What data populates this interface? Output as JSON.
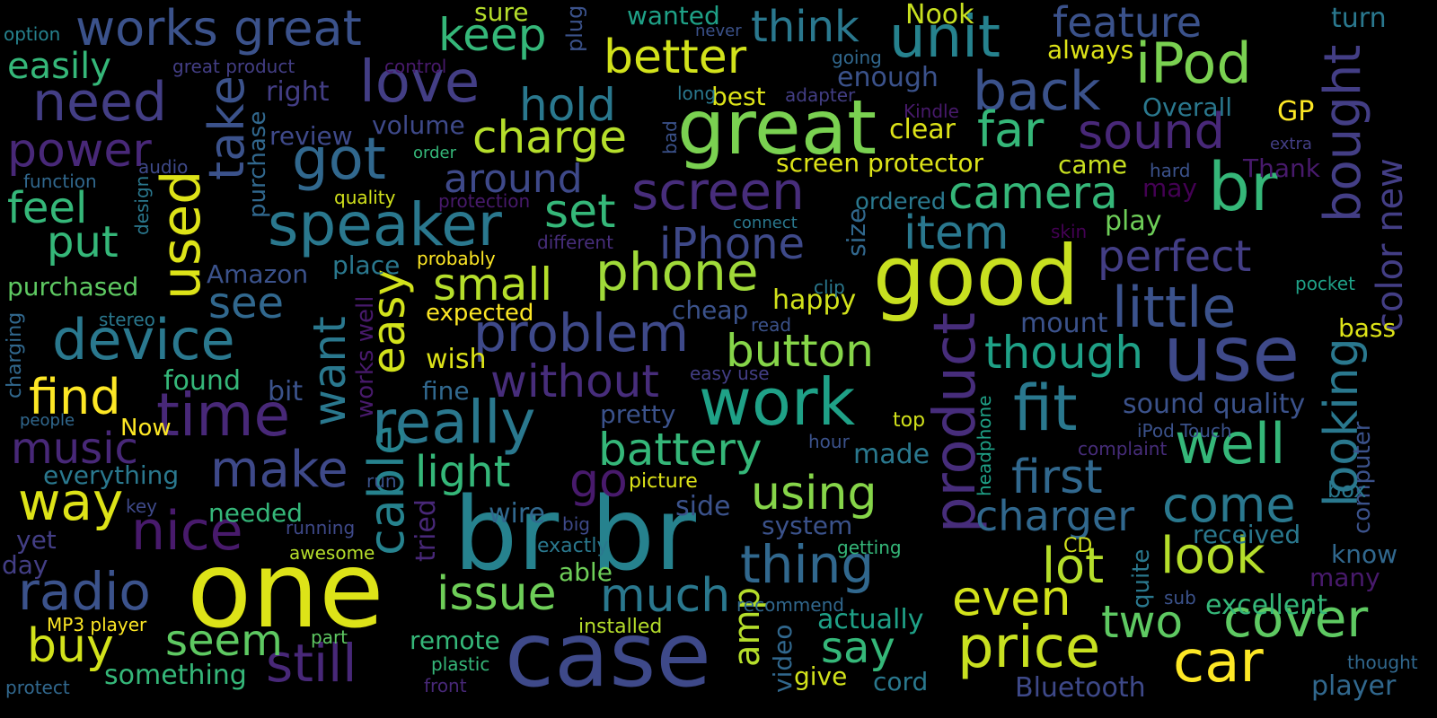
{
  "background": "#000000",
  "palette": [
    "#440154",
    "#482878",
    "#3e4989",
    "#31688e",
    "#26828e",
    "#1f9e89",
    "#35b779",
    "#6ece58",
    "#b5de2b",
    "#fde725"
  ],
  "words": [
    {
      "text": "br br",
      "color": "#26828e"
    },
    {
      "text": "case",
      "color": "#3e4989"
    },
    {
      "text": "one",
      "color": "#dde318"
    },
    {
      "text": "good",
      "color": "#c8e020"
    },
    {
      "text": "great",
      "color": "#7ad151"
    },
    {
      "text": "use",
      "color": "#3e4989"
    },
    {
      "text": "work",
      "color": "#1fa187"
    },
    {
      "text": "product",
      "color": "#472d7b"
    },
    {
      "text": "speaker",
      "color": "#2a788e"
    },
    {
      "text": "really",
      "color": "#2a788e"
    },
    {
      "text": "time",
      "color": "#482878"
    },
    {
      "text": "br",
      "color": "#35b779"
    },
    {
      "text": "device",
      "color": "#2a788e"
    },
    {
      "text": "unit",
      "color": "#26828e"
    },
    {
      "text": "price",
      "color": "#c8e020"
    },
    {
      "text": "car",
      "color": "#fde725"
    },
    {
      "text": "little",
      "color": "#3b528b"
    },
    {
      "text": "still",
      "color": "#482878"
    },
    {
      "text": "nice",
      "color": "#481a6c"
    },
    {
      "text": "love",
      "color": "#433e85"
    },
    {
      "text": "phone",
      "color": "#a0da39"
    },
    {
      "text": "problem",
      "color": "#3e4989"
    },
    {
      "text": "thing",
      "color": "#31688e"
    },
    {
      "text": "iPod",
      "color": "#7ad151"
    },
    {
      "text": "cover",
      "color": "#5ec962"
    },
    {
      "text": "well",
      "color": "#35b779"
    },
    {
      "text": "fit",
      "color": "#2a788e"
    },
    {
      "text": "look",
      "color": "#b5de2b"
    },
    {
      "text": "even",
      "color": "#d2e21b"
    },
    {
      "text": "radio",
      "color": "#3b528b"
    },
    {
      "text": "used",
      "color": "#dde318"
    },
    {
      "text": "need",
      "color": "#433e85"
    },
    {
      "text": "got",
      "color": "#31688e"
    },
    {
      "text": "screen",
      "color": "#472d7b"
    },
    {
      "text": "sound",
      "color": "#482878"
    },
    {
      "text": "bought",
      "color": "#433e85"
    },
    {
      "text": "cable",
      "color": "#26828e"
    },
    {
      "text": "easy",
      "color": "#d2e21b"
    },
    {
      "text": "make",
      "color": "#3e4989"
    },
    {
      "text": "much",
      "color": "#2a788e"
    },
    {
      "text": "issue",
      "color": "#6ece58"
    },
    {
      "text": "using",
      "color": "#86d549"
    },
    {
      "text": "battery",
      "color": "#35b779"
    },
    {
      "text": "small",
      "color": "#b5de2b"
    },
    {
      "text": "charge",
      "color": "#b5de2b"
    },
    {
      "text": "better",
      "color": "#d2e21b"
    },
    {
      "text": "works great",
      "color": "#3b528b"
    },
    {
      "text": "back",
      "color": "#3b528b"
    },
    {
      "text": "far",
      "color": "#35b779"
    },
    {
      "text": "camera",
      "color": "#35b779"
    },
    {
      "text": "iPhone",
      "color": "#3e4989"
    },
    {
      "text": "item",
      "color": "#2a788e"
    },
    {
      "text": "perfect",
      "color": "#433e85"
    },
    {
      "text": "though",
      "color": "#1fa187"
    },
    {
      "text": "first",
      "color": "#31688e"
    },
    {
      "text": "charger",
      "color": "#31688e"
    },
    {
      "text": "come",
      "color": "#2a788e"
    },
    {
      "text": "lot",
      "color": "#b5de2b"
    },
    {
      "text": "two",
      "color": "#5ec962"
    },
    {
      "text": "say",
      "color": "#35b779"
    },
    {
      "text": "button",
      "color": "#86d549"
    },
    {
      "text": "without",
      "color": "#472d7b"
    },
    {
      "text": "around",
      "color": "#3e4989"
    },
    {
      "text": "hold",
      "color": "#2a788e"
    },
    {
      "text": "set",
      "color": "#35b779"
    },
    {
      "text": "keep",
      "color": "#35b779"
    },
    {
      "text": "think",
      "color": "#2a788e"
    },
    {
      "text": "feature",
      "color": "#3b528b"
    },
    {
      "text": "way",
      "color": "#dde318"
    },
    {
      "text": "buy",
      "color": "#d2e21b"
    },
    {
      "text": "seem",
      "color": "#5ec962"
    },
    {
      "text": "find",
      "color": "#fde725"
    },
    {
      "text": "music",
      "color": "#482878"
    },
    {
      "text": "power",
      "color": "#482878"
    },
    {
      "text": "take",
      "color": "#3b528b"
    },
    {
      "text": "want",
      "color": "#2a788e"
    },
    {
      "text": "see",
      "color": "#31688e"
    },
    {
      "text": "put",
      "color": "#35b779"
    },
    {
      "text": "feel",
      "color": "#35b779"
    },
    {
      "text": "easily",
      "color": "#35b779"
    },
    {
      "text": "light",
      "color": "#35b779"
    },
    {
      "text": "go",
      "color": "#481a6c"
    },
    {
      "text": "looking",
      "color": "#2a788e"
    },
    {
      "text": "amp",
      "color": "#b5de2b"
    },
    {
      "text": "sound quality",
      "color": "#3b528b"
    },
    {
      "text": "color new",
      "color": "#433e85"
    },
    {
      "text": "screen protector",
      "color": "#dde318"
    },
    {
      "text": "came",
      "color": "#c8e020"
    },
    {
      "text": "clear",
      "color": "#dde318"
    },
    {
      "text": "happy",
      "color": "#d2e21b"
    },
    {
      "text": "pretty",
      "color": "#3b528b"
    },
    {
      "text": "everything",
      "color": "#2a788e"
    },
    {
      "text": "something",
      "color": "#35b779"
    },
    {
      "text": "remote",
      "color": "#35b779"
    },
    {
      "text": "actually",
      "color": "#1fa187"
    },
    {
      "text": "excellent",
      "color": "#35b779"
    },
    {
      "text": "received",
      "color": "#2a788e"
    },
    {
      "text": "know",
      "color": "#31688e"
    },
    {
      "text": "system",
      "color": "#3b528b"
    },
    {
      "text": "Bluetooth",
      "color": "#3e4989"
    },
    {
      "text": "player",
      "color": "#31688e"
    },
    {
      "text": "Nook",
      "color": "#c8e020"
    },
    {
      "text": "wanted",
      "color": "#1fa187"
    },
    {
      "text": "enough",
      "color": "#3b528b"
    },
    {
      "text": "always",
      "color": "#dde318"
    },
    {
      "text": "turn",
      "color": "#2a788e"
    },
    {
      "text": "GP",
      "color": "#fde725"
    },
    {
      "text": "Overall",
      "color": "#2a788e"
    },
    {
      "text": "Thank",
      "color": "#481a6c"
    },
    {
      "text": "may",
      "color": "#440154"
    },
    {
      "text": "play",
      "color": "#6ece58"
    },
    {
      "text": "mount",
      "color": "#3b528b"
    },
    {
      "text": "bass",
      "color": "#dde318"
    },
    {
      "text": "cheap",
      "color": "#3b528b"
    },
    {
      "text": "expected",
      "color": "#fde725"
    },
    {
      "text": "purchased",
      "color": "#5ec962"
    },
    {
      "text": "Amazon",
      "color": "#3b528b"
    },
    {
      "text": "place",
      "color": "#2a788e"
    },
    {
      "text": "found",
      "color": "#35b779"
    },
    {
      "text": "wish",
      "color": "#dde318"
    },
    {
      "text": "fine",
      "color": "#31688e"
    },
    {
      "text": "bit",
      "color": "#3b528b"
    },
    {
      "text": "review",
      "color": "#3e4989"
    },
    {
      "text": "volume",
      "color": "#3e4989"
    },
    {
      "text": "right",
      "color": "#433e85"
    },
    {
      "text": "best",
      "color": "#dde318"
    },
    {
      "text": "sure",
      "color": "#b5de2b"
    },
    {
      "text": "wire",
      "color": "#31688e"
    },
    {
      "text": "side",
      "color": "#3b528b"
    },
    {
      "text": "able",
      "color": "#6ece58"
    },
    {
      "text": "made",
      "color": "#2a788e"
    },
    {
      "text": "give",
      "color": "#d2e21b"
    },
    {
      "text": "cord",
      "color": "#2a788e"
    },
    {
      "text": "needed",
      "color": "#35b779"
    },
    {
      "text": "yet",
      "color": "#433e85"
    },
    {
      "text": "day",
      "color": "#433e85"
    },
    {
      "text": "tried",
      "color": "#482878"
    },
    {
      "text": "size",
      "color": "#31688e"
    },
    {
      "text": "video",
      "color": "#31688e"
    },
    {
      "text": "quite",
      "color": "#2a788e"
    },
    {
      "text": "Now",
      "color": "#fde725"
    },
    {
      "text": "works well",
      "color": "#481a6c"
    },
    {
      "text": "purchase",
      "color": "#31688e"
    },
    {
      "text": "design",
      "color": "#2a788e"
    },
    {
      "text": "charging",
      "color": "#31688e"
    },
    {
      "text": "headphone",
      "color": "#1fa187"
    },
    {
      "text": "computer",
      "color": "#3b528b"
    },
    {
      "text": "plug",
      "color": "#3b528b"
    },
    {
      "text": "bad",
      "color": "#3b528b"
    },
    {
      "text": "great product",
      "color": "#433e85"
    },
    {
      "text": "control",
      "color": "#481a6c"
    },
    {
      "text": "option",
      "color": "#26828e"
    },
    {
      "text": "never",
      "color": "#3b528b"
    },
    {
      "text": "going",
      "color": "#31688e"
    },
    {
      "text": "Kindle",
      "color": "#481a6c"
    },
    {
      "text": "long",
      "color": "#2a788e"
    },
    {
      "text": "adapter",
      "color": "#433e85"
    },
    {
      "text": "extra",
      "color": "#433e85"
    },
    {
      "text": "hard",
      "color": "#3b528b"
    },
    {
      "text": "audio",
      "color": "#3e4989"
    },
    {
      "text": "function",
      "color": "#31688e"
    },
    {
      "text": "order",
      "color": "#35b779"
    },
    {
      "text": "quality",
      "color": "#d2e21b"
    },
    {
      "text": "protection",
      "color": "#481a6c"
    },
    {
      "text": "connect",
      "color": "#2a788e"
    },
    {
      "text": "different",
      "color": "#472d7b"
    },
    {
      "text": "skin",
      "color": "#440154"
    },
    {
      "text": "ordered",
      "color": "#2a788e"
    },
    {
      "text": "probably",
      "color": "#fde725"
    },
    {
      "text": "clip",
      "color": "#2a788e"
    },
    {
      "text": "pocket",
      "color": "#1fa187"
    },
    {
      "text": "read",
      "color": "#3b528b"
    },
    {
      "text": "stereo",
      "color": "#2a788e"
    },
    {
      "text": "easy use",
      "color": "#433e85"
    },
    {
      "text": "top",
      "color": "#d2e21b"
    },
    {
      "text": "iPod Touch",
      "color": "#3b528b"
    },
    {
      "text": "complaint",
      "color": "#472d7b"
    },
    {
      "text": "hour",
      "color": "#3b528b"
    },
    {
      "text": "people",
      "color": "#31688e"
    },
    {
      "text": "run",
      "color": "#3b528b"
    },
    {
      "text": "picture",
      "color": "#dde318"
    },
    {
      "text": "key",
      "color": "#3e4989"
    },
    {
      "text": "running",
      "color": "#3e4989"
    },
    {
      "text": "awesome",
      "color": "#b5de2b"
    },
    {
      "text": "big",
      "color": "#3e4989"
    },
    {
      "text": "exactly",
      "color": "#2a788e"
    },
    {
      "text": "getting",
      "color": "#35b779"
    },
    {
      "text": "CD",
      "color": "#d2e21b"
    },
    {
      "text": "box",
      "color": "#2a788e"
    },
    {
      "text": "many",
      "color": "#481a6c"
    },
    {
      "text": "sub",
      "color": "#3b528b"
    },
    {
      "text": "recommend",
      "color": "#31688e"
    },
    {
      "text": "installed",
      "color": "#b5de2b"
    },
    {
      "text": "part",
      "color": "#5ec962"
    },
    {
      "text": "plastic",
      "color": "#35b779"
    },
    {
      "text": "front",
      "color": "#482878"
    },
    {
      "text": "MP3 player",
      "color": "#fde725"
    },
    {
      "text": "protect",
      "color": "#31688e"
    },
    {
      "text": "thought",
      "color": "#31688e"
    }
  ]
}
